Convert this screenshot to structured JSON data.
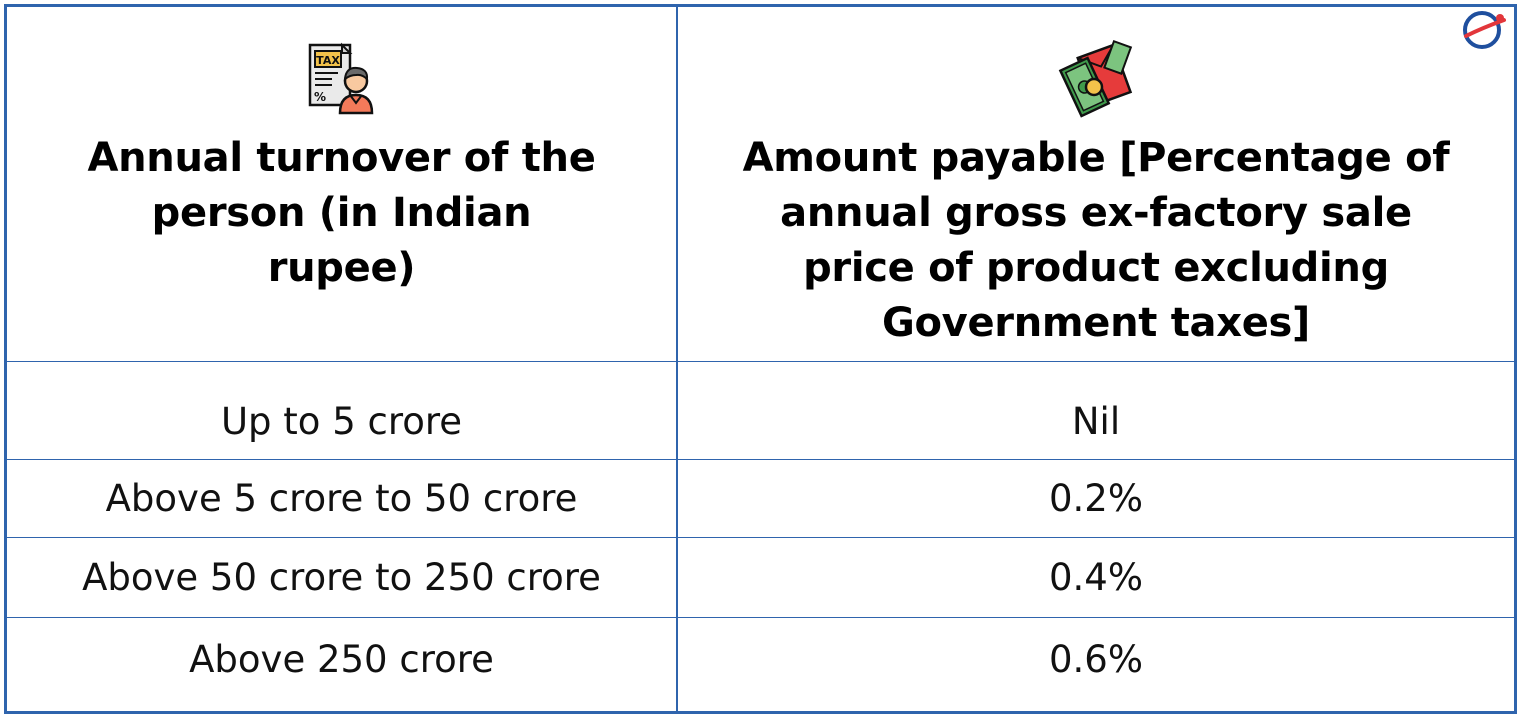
{
  "table": {
    "headers": [
      {
        "icon": "tax-document-person-icon",
        "lines": [
          "Annual turnover of the",
          "person (in Indian",
          "rupee)"
        ]
      },
      {
        "icon": "money-envelope-icon",
        "lines": [
          "Amount payable [Percentage of",
          "annual gross ex-factory sale",
          "price of product excluding",
          "Government taxes]"
        ]
      }
    ],
    "rows": [
      {
        "turnover": "Up to 5 crore",
        "amount": "Nil"
      },
      {
        "turnover": "Above 5 crore to 50 crore",
        "amount": "0.2%"
      },
      {
        "turnover": "Above 50 crore to 250 crore",
        "amount": "0.4%"
      },
      {
        "turnover": "Above 250 crore",
        "amount": "0.6%"
      }
    ],
    "icon_tax_label": "TAX",
    "icon_percent_label": "%"
  },
  "colors": {
    "border": "#2f64ad",
    "logo_blue": "#1f4f9e",
    "logo_red": "#e2363b"
  },
  "logo": {
    "icon": "brand-logo-icon"
  }
}
